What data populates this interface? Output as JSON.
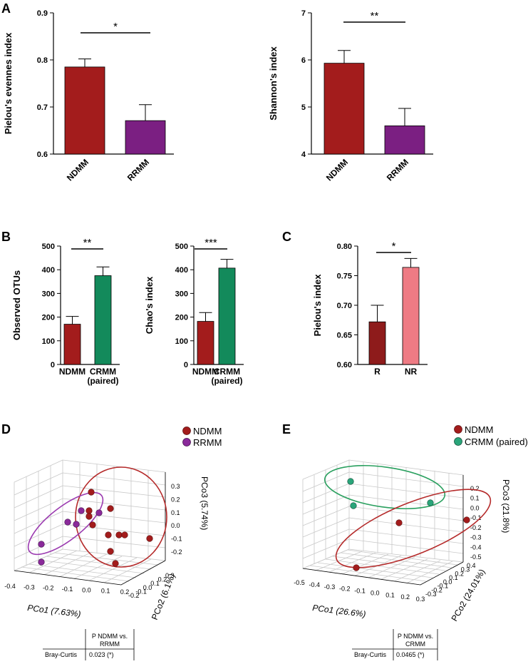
{
  "panels": {
    "A": "A",
    "B": "B",
    "C": "C",
    "D": "D",
    "E": "E"
  },
  "colors": {
    "ndmm": "#a31c1c",
    "rrmm": "#7b1f82",
    "crmm": "#138a5b",
    "r": "#8e1b1b",
    "nr": "#ee7b84",
    "grid": "#c8c8c8",
    "rrmm_marker": "#8a2a9a",
    "crmm_marker": "#2aa57a"
  },
  "chart_data": [
    {
      "id": "A1",
      "type": "bar",
      "categories": [
        "NDMM",
        "RRMM"
      ],
      "values": [
        0.785,
        0.671
      ],
      "errors": [
        0.017,
        0.034
      ],
      "ylabel": "Pielou's evennes index",
      "ylim": [
        0.6,
        0.9
      ],
      "yticks": [
        "0.6",
        "0.7",
        "0.8",
        "0.9"
      ],
      "significance": "*"
    },
    {
      "id": "A2",
      "type": "bar",
      "categories": [
        "NDMM",
        "RRMM"
      ],
      "values": [
        5.93,
        4.6
      ],
      "errors": [
        0.27,
        0.37
      ],
      "ylabel": "Shannon's index",
      "ylim": [
        4,
        7
      ],
      "yticks": [
        "4",
        "5",
        "6",
        "7"
      ],
      "significance": "**"
    },
    {
      "id": "B1",
      "type": "bar",
      "categories": [
        "NDMM",
        "CRMM\n(paired)"
      ],
      "values": [
        170,
        375
      ],
      "errors": [
        33,
        37
      ],
      "ylabel": "Observed OTUs",
      "ylim": [
        0,
        500
      ],
      "yticks": [
        "0",
        "100",
        "200",
        "300",
        "400",
        "500"
      ],
      "significance": "**"
    },
    {
      "id": "B2",
      "type": "bar",
      "categories": [
        "NDMM",
        "CRMM\n(paired)"
      ],
      "values": [
        182,
        407
      ],
      "errors": [
        37,
        37
      ],
      "ylabel": "Chao's index",
      "ylim": [
        0,
        500
      ],
      "yticks": [
        "0",
        "100",
        "200",
        "300",
        "400",
        "500"
      ],
      "significance": "***"
    },
    {
      "id": "C",
      "type": "bar",
      "categories": [
        "R",
        "NR"
      ],
      "values": [
        0.672,
        0.764
      ],
      "errors": [
        0.028,
        0.015
      ],
      "ylabel": "Pielou's index",
      "ylim": [
        0.6,
        0.8
      ],
      "yticks": [
        "0.60",
        "0.65",
        "0.70",
        "0.75",
        "0.80"
      ],
      "significance": "*"
    },
    {
      "id": "D",
      "type": "scatter3d",
      "legend": [
        "NDMM",
        "RRMM"
      ],
      "pc1_label": "PCo1 (7.63%)",
      "pc2_label": "PCo2 (6.1%)",
      "pc3_label": "PCo3 (5.74%)",
      "pc1_ticks": [
        "-0.4",
        "-0.3",
        "-0.2",
        "-0.1",
        "0.0",
        "0.1",
        "0.2"
      ],
      "pc2_ticks": [
        "-0.2",
        "-0.1",
        "0.0",
        "0.1",
        "0.2",
        "0.3"
      ],
      "pc3_ticks": [
        "0.3",
        "0.2",
        "0.1",
        "0.0",
        "-0.1",
        "-0.2"
      ],
      "table": {
        "header": "P NDMM vs. RRMM",
        "header_lines": [
          "P NDMM vs.",
          "RRMM"
        ],
        "row_label": "Bray-Curtis",
        "value": "0.023 (*)"
      }
    },
    {
      "id": "E",
      "type": "scatter3d",
      "legend": [
        "NDMM",
        "CRMM (paired)"
      ],
      "pc1_label": "PCo1 (26.6%)",
      "pc2_label": "PCo2 (24.01%)",
      "pc3_label": "PCo3 (21.8%)",
      "pc1_ticks": [
        "-0.5",
        "-0.4",
        "-0.3",
        "-0.2",
        "-0.1",
        "0.0",
        "0.1",
        "0.2",
        "0.3"
      ],
      "pc2_ticks": [
        "-0.3",
        "-0.2",
        "-0.1",
        "0.0",
        "0.1",
        "0.2",
        "0.3",
        "0.4"
      ],
      "pc3_ticks": [
        "0.2",
        "0.1",
        "0.0",
        "-0.1",
        "-0.2",
        "-0.3",
        "-0.4",
        "-0.5"
      ],
      "table": {
        "header": "P NDMM vs. CRMM",
        "header_lines": [
          "P NDMM vs.",
          "CRMM"
        ],
        "row_label": "Bray-Curtis",
        "value": "0.0465 (*)"
      }
    }
  ]
}
